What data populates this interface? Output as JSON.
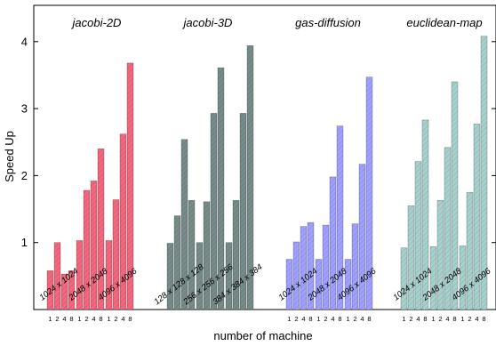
{
  "chart_data": {
    "type": "bar",
    "ylabel": "Speed Up",
    "xlabel": "number of machine",
    "ylim": [
      0,
      4.35
    ],
    "yticks": [
      "1",
      "2",
      "3",
      "4"
    ],
    "grid": false,
    "legend": "none",
    "machine_labels": [
      "1",
      "2",
      "4",
      "8"
    ],
    "groups": [
      {
        "name": "jacobi-2D",
        "color": "#f4677f",
        "subgroups": [
          {
            "label": "1024 x 1024",
            "values": [
              0.58,
              1.0,
              0.53,
              0.58
            ]
          },
          {
            "label": "2048 x 2048",
            "values": [
              1.03,
              1.78,
              1.92,
              2.4
            ]
          },
          {
            "label": "4096 x 4096",
            "values": [
              1.03,
              1.64,
              2.62,
              3.68
            ]
          }
        ]
      },
      {
        "name": "jacobi-3D",
        "color": "#778c8a",
        "subgroups": [
          {
            "label": "128 x 128 x 128",
            "values": [
              0.99,
              1.4,
              2.54,
              1.63
            ]
          },
          {
            "label": "256 x 256 x 256",
            "values": [
              1.0,
              1.61,
              2.93,
              3.61
            ]
          },
          {
            "label": "384 x 384 x 384",
            "values": [
              1.0,
              1.63,
              2.93,
              3.94
            ]
          }
        ]
      },
      {
        "name": "gas-diffusion",
        "color": "#a0a0ff",
        "subgroups": [
          {
            "label": "1024 x 1024",
            "values": [
              0.75,
              1.01,
              1.24,
              1.3
            ]
          },
          {
            "label": "2048 x 2048",
            "values": [
              0.75,
              1.26,
              1.98,
              2.74
            ]
          },
          {
            "label": "4096 x 4096",
            "values": [
              0.75,
              1.28,
              2.17,
              3.47
            ]
          }
        ]
      },
      {
        "name": "euclidean-map",
        "color": "#a7d1cd",
        "subgroups": [
          {
            "label": "1024 x 1024",
            "values": [
              0.92,
              1.55,
              2.21,
              2.83
            ]
          },
          {
            "label": "2048 x 2048",
            "values": [
              0.94,
              1.63,
              2.42,
              3.4
            ]
          },
          {
            "label": "4096 x 4096",
            "values": [
              0.95,
              1.75,
              2.77,
              4.08
            ]
          }
        ]
      }
    ]
  }
}
